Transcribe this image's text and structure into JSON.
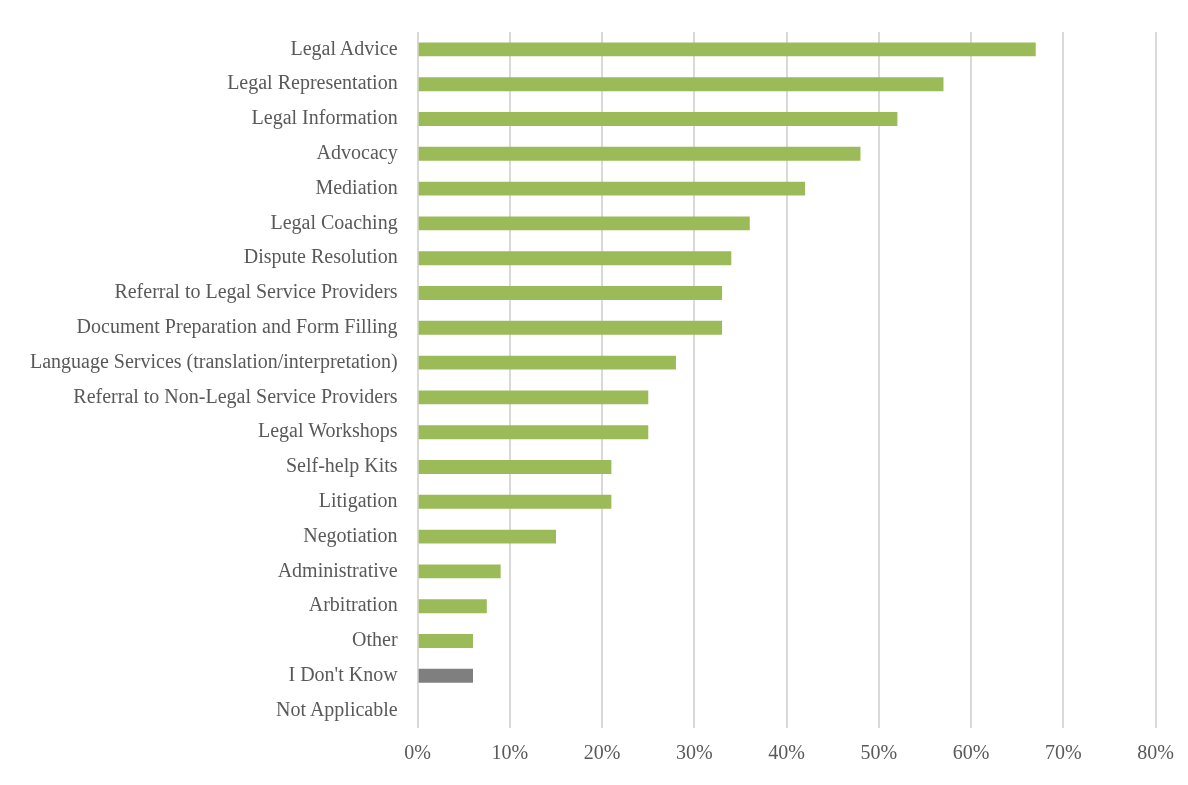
{
  "chart_data": {
    "type": "bar",
    "orientation": "horizontal",
    "categories": [
      "Legal Advice",
      "Legal Representation",
      "Legal Information",
      "Advocacy",
      "Mediation",
      "Legal Coaching",
      "Dispute Resolution",
      "Referral to Legal Service Providers",
      "Document Preparation and Form Filling",
      "Language Services (translation/interpretation)",
      "Referral to Non-Legal Service Providers",
      "Legal Workshops",
      "Self-help Kits",
      "Litigation",
      "Negotiation",
      "Administrative",
      "Arbitration",
      "Other",
      "I Don't Know",
      "Not Applicable"
    ],
    "values": [
      67,
      57,
      52,
      48,
      42,
      36,
      34,
      33,
      33,
      28,
      25,
      25,
      21,
      21,
      15,
      9,
      7.5,
      6,
      6,
      0
    ],
    "colors": [
      "#9bbb59",
      "#9bbb59",
      "#9bbb59",
      "#9bbb59",
      "#9bbb59",
      "#9bbb59",
      "#9bbb59",
      "#9bbb59",
      "#9bbb59",
      "#9bbb59",
      "#9bbb59",
      "#9bbb59",
      "#9bbb59",
      "#9bbb59",
      "#9bbb59",
      "#9bbb59",
      "#9bbb59",
      "#9bbb59",
      "#7f7f7f",
      "#9bbb59"
    ],
    "xlim": [
      0,
      80
    ],
    "xticks": [
      {
        "value": 0,
        "label": "0%"
      },
      {
        "value": 10,
        "label": "10%"
      },
      {
        "value": 20,
        "label": "20%"
      },
      {
        "value": 30,
        "label": "30%"
      },
      {
        "value": 40,
        "label": "40%"
      },
      {
        "value": 50,
        "label": "50%"
      },
      {
        "value": 60,
        "label": "60%"
      },
      {
        "value": 70,
        "label": "70%"
      },
      {
        "value": 80,
        "label": "80%"
      }
    ],
    "grid": "x",
    "legend": false
  }
}
